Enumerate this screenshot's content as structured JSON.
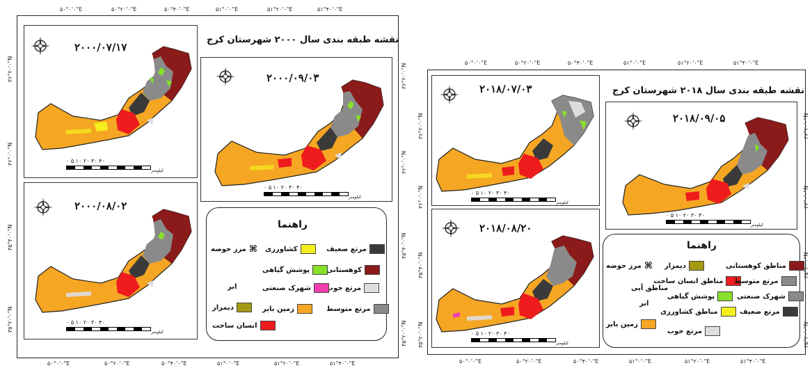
{
  "colors": {
    "barren": "#f5a623",
    "built": "#ee1c1c",
    "mountain": "#8b1a1a",
    "weak": "#3a3a3a",
    "medium": "#8a8a8a",
    "good": "#dedede",
    "veg": "#88e02a",
    "agri": "#f5ef1e",
    "industrial": "#ee3fb0",
    "dimzar": "#a59a13",
    "boundary": "#222222"
  },
  "left": {
    "top_ticks": [
      "۵۰°۰'۰\"E",
      "۵۰°۲۰'۰\"E",
      "۵۰°۴۰'۰\"E",
      "۵۱°۰'۰\"E",
      "۵۱°۲۰'۰\"E",
      "۵۱°۴۰'۰\"E"
    ],
    "bottom_ticks": [
      "۵۰°۰'۰\"E",
      "۵۰°۲۰'۰\"E",
      "۵۰°۴۰'۰\"E",
      "۵۱°۰'۰\"E",
      "۵۱°۲۰'۰\"E",
      "۵۱°۴۰'۰\"E"
    ],
    "left_ticks": [
      "۳۶°۲۰'۰\"N",
      "۳۶°۰'۰\"N",
      "۳۵°۴۰'۰\"N",
      "۳۵°۲۰'۰\"N"
    ],
    "right_ticks": [
      "۳۶°۲۰'۰\"N",
      "۳۶°۰'۰\"N",
      "۳۵°۴۰'۰\"N",
      "۳۵°۲۰'۰\"N"
    ],
    "title": "نقشه طبقه بندی سال ۲۰۰۰ شهرستان کرج",
    "dates": [
      "۲۰۰۰/۰۷/۱۷",
      "۲۰۰۰/۰۹/۰۳",
      "۲۰۰۰/۰۸/۰۲"
    ],
    "scale_numbers": "۰ ۵ ۱۰ ۲۰ ۳۰ ۴۰",
    "scale_unit": "کیلومتر",
    "legend": {
      "title": "راهنما",
      "items": {
        "weak": "مرتع ضعیف",
        "agri": "کشاورزی",
        "boundary": "مرز حوضه",
        "mountain": "کوهستانی",
        "veg": "پوشش گیاهی",
        "cloud": "ابر",
        "good": "مرتع خوب",
        "industrial": "شهرک صنعتی",
        "dimzar": "دیمزار",
        "medium": "مرتع متوسط",
        "barren": "زمین بایر",
        "built": "انسان ساخت"
      }
    }
  },
  "right": {
    "top_ticks": [
      "۵۰°۰'۰\"E",
      "۵۰°۲۰'۰\"E",
      "۵۰°۴۰'۰\"E",
      "۵۱°۰'۰\"E",
      "۵۱°۲۰'۰\"E",
      "۵۱°۴۰'۰\"E"
    ],
    "bottom_ticks": [
      "۵۰°۰'۰\"E",
      "۵۰°۲۰'۰\"E",
      "۵۰°۴۰'۰\"E",
      "۵۱°۰'۰\"E",
      "۵۱°۲۰'۰\"E",
      "۵۱°۴۰'۰\"E"
    ],
    "left_ticks": [
      "۳۶°۲۰'۰\"N",
      "۳۶°۰'۰\"N",
      "۳۵°۴۰'۰\"N",
      "۳۵°۲۰'۰\"N"
    ],
    "right_ticks": [
      "۳۶°۲۰'۰\"N",
      "۳۶°۰'۰\"N",
      "۳۵°۴۰'۰\"N",
      "۳۵°۲۰'۰\"N"
    ],
    "title": "نقشه طبقه بندی سال ۲۰۱۸ شهرستان کرج",
    "dates": [
      "۲۰۱۸/۰۷/۰۳",
      "۲۰۱۸/۰۹/۰۵",
      "۲۰۱۸/۰۸/۲۰"
    ],
    "scale_numbers": "۰ ۵ ۱۰ ۲۰ ۳۰ ۴۰",
    "scale_unit": "کیلومتر",
    "legend": {
      "title": "راهنما",
      "items": {
        "boundary": "مرز حوضه",
        "dimzar": "دیمزار",
        "mountain": "مناطق کوهستانی",
        "water": "مناطق آبی",
        "built": "مناطق انسان ساخت",
        "medium": "مرتع متوسط",
        "cloud": "ابر",
        "veg": "پوشش گیاهی",
        "industrial": "شهرک صنعتی",
        "barren": "زمین بایر",
        "agri": "مناطق کشاورزی",
        "weak": "مرتع ضعیف",
        "good": "مرتع خوب"
      }
    }
  }
}
